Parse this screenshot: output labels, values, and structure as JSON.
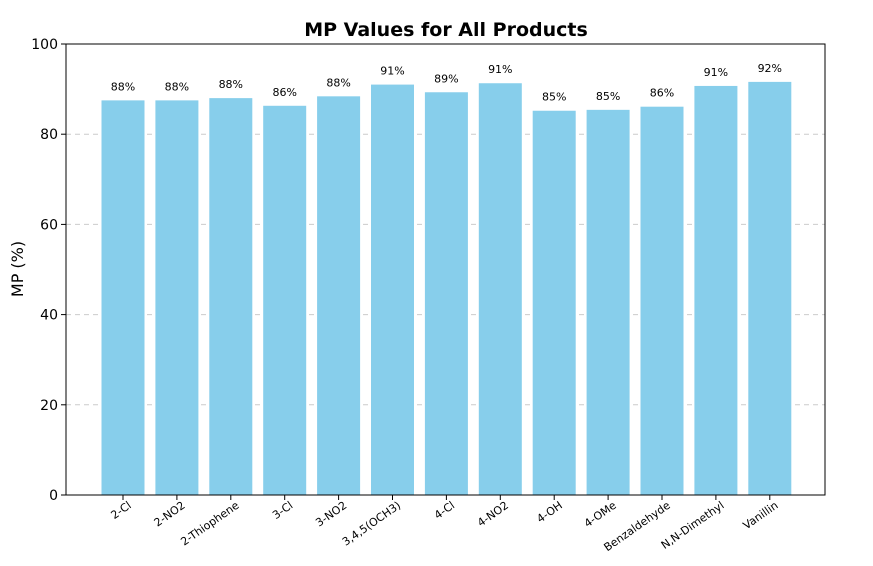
{
  "chart_data": {
    "type": "bar",
    "title": "MP Values for All Products",
    "xlabel": "",
    "ylabel": "MP (%)",
    "ylim": [
      0,
      100
    ],
    "yticks": [
      0,
      20,
      40,
      60,
      80,
      100
    ],
    "grid": "y-dashed",
    "bar_color": "#87CEEB",
    "categories": [
      "2-Cl",
      "2-NO2",
      "2-Thiophene",
      "3-Cl",
      "3-NO2",
      "3,4,5(OCH3)",
      "4-Cl",
      "4-NO2",
      "4-OH",
      "4-OMe",
      "Benzaldehyde",
      "N,N-Dimethyl",
      "Vanillin"
    ],
    "values": [
      87.5,
      87.5,
      88.0,
      86.3,
      88.4,
      91.0,
      89.3,
      91.3,
      85.2,
      85.4,
      86.1,
      90.7,
      91.6
    ],
    "data_labels": [
      "88%",
      "88%",
      "88%",
      "86%",
      "88%",
      "91%",
      "89%",
      "91%",
      "85%",
      "85%",
      "86%",
      "91%",
      "92%"
    ]
  }
}
